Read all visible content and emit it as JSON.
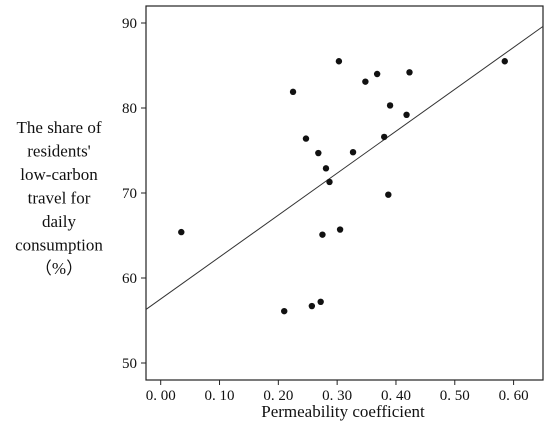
{
  "chart_data": {
    "type": "scatter",
    "xlabel": "Permeability coefficient",
    "ylabel_lines": [
      "The share of",
      "residents'",
      "low-carbon",
      "travel for",
      "daily",
      "consumption",
      "（%）"
    ],
    "xlim": [
      -0.025,
      0.65
    ],
    "ylim": [
      48,
      92
    ],
    "xticks": [
      0.0,
      0.1,
      0.2,
      0.3,
      0.4,
      0.5,
      0.6
    ],
    "xtick_labels": [
      "0. 00",
      "0. 10",
      "0. 20",
      "0. 30",
      "0. 40",
      "0. 50",
      "0. 60"
    ],
    "yticks": [
      50,
      60,
      70,
      80,
      90
    ],
    "ytick_labels": [
      "50",
      "60",
      "70",
      "80",
      "90"
    ],
    "grid": false,
    "points": [
      {
        "x": 0.035,
        "y": 65.4
      },
      {
        "x": 0.21,
        "y": 56.1
      },
      {
        "x": 0.225,
        "y": 81.9
      },
      {
        "x": 0.247,
        "y": 76.4
      },
      {
        "x": 0.257,
        "y": 56.7
      },
      {
        "x": 0.268,
        "y": 74.7
      },
      {
        "x": 0.272,
        "y": 57.2
      },
      {
        "x": 0.275,
        "y": 65.1
      },
      {
        "x": 0.281,
        "y": 72.9
      },
      {
        "x": 0.287,
        "y": 71.3
      },
      {
        "x": 0.303,
        "y": 85.5
      },
      {
        "x": 0.305,
        "y": 65.7
      },
      {
        "x": 0.327,
        "y": 74.8
      },
      {
        "x": 0.348,
        "y": 83.1
      },
      {
        "x": 0.368,
        "y": 84.0
      },
      {
        "x": 0.38,
        "y": 76.6
      },
      {
        "x": 0.387,
        "y": 69.8
      },
      {
        "x": 0.39,
        "y": 80.3
      },
      {
        "x": 0.418,
        "y": 79.2
      },
      {
        "x": 0.423,
        "y": 84.2
      },
      {
        "x": 0.585,
        "y": 85.5
      }
    ],
    "fit_line": {
      "x": [
        -0.025,
        0.65
      ],
      "y": [
        56.3,
        89.6
      ]
    }
  }
}
